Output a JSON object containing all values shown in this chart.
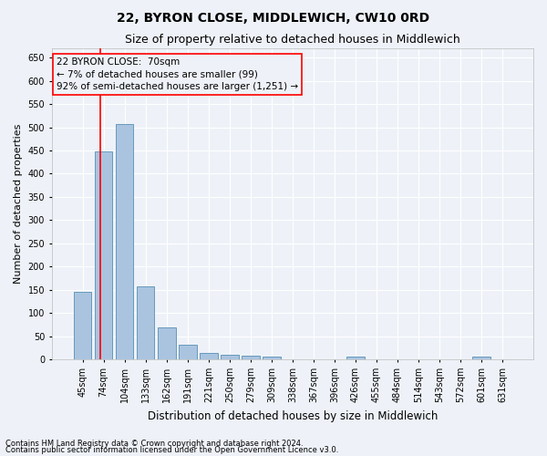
{
  "title": "22, BYRON CLOSE, MIDDLEWICH, CW10 0RD",
  "subtitle": "Size of property relative to detached houses in Middlewich",
  "xlabel": "Distribution of detached houses by size in Middlewich",
  "ylabel": "Number of detached properties",
  "categories": [
    "45sqm",
    "74sqm",
    "104sqm",
    "133sqm",
    "162sqm",
    "191sqm",
    "221sqm",
    "250sqm",
    "279sqm",
    "309sqm",
    "338sqm",
    "367sqm",
    "396sqm",
    "426sqm",
    "455sqm",
    "484sqm",
    "514sqm",
    "543sqm",
    "572sqm",
    "601sqm",
    "631sqm"
  ],
  "values": [
    145,
    448,
    507,
    157,
    68,
    32,
    13,
    9,
    7,
    5,
    0,
    0,
    0,
    6,
    0,
    0,
    0,
    0,
    0,
    5,
    0
  ],
  "bar_color": "#aac4e0",
  "bar_edge_color": "#6699bb",
  "ylim": [
    0,
    670
  ],
  "yticks": [
    0,
    50,
    100,
    150,
    200,
    250,
    300,
    350,
    400,
    450,
    500,
    550,
    600,
    650
  ],
  "annotation_text": "22 BYRON CLOSE:  70sqm\n← 7% of detached houses are smaller (99)\n92% of semi-detached houses are larger (1,251) →",
  "footnote1": "Contains HM Land Registry data © Crown copyright and database right 2024.",
  "footnote2": "Contains public sector information licensed under the Open Government Licence v3.0.",
  "bg_color": "#eef2f8",
  "grid_color": "#ffffff",
  "title_fontsize": 10,
  "subtitle_fontsize": 9,
  "annot_fontsize": 7.5,
  "tick_fontsize": 7,
  "ylabel_fontsize": 8,
  "xlabel_fontsize": 8.5,
  "footnote_fontsize": 6
}
